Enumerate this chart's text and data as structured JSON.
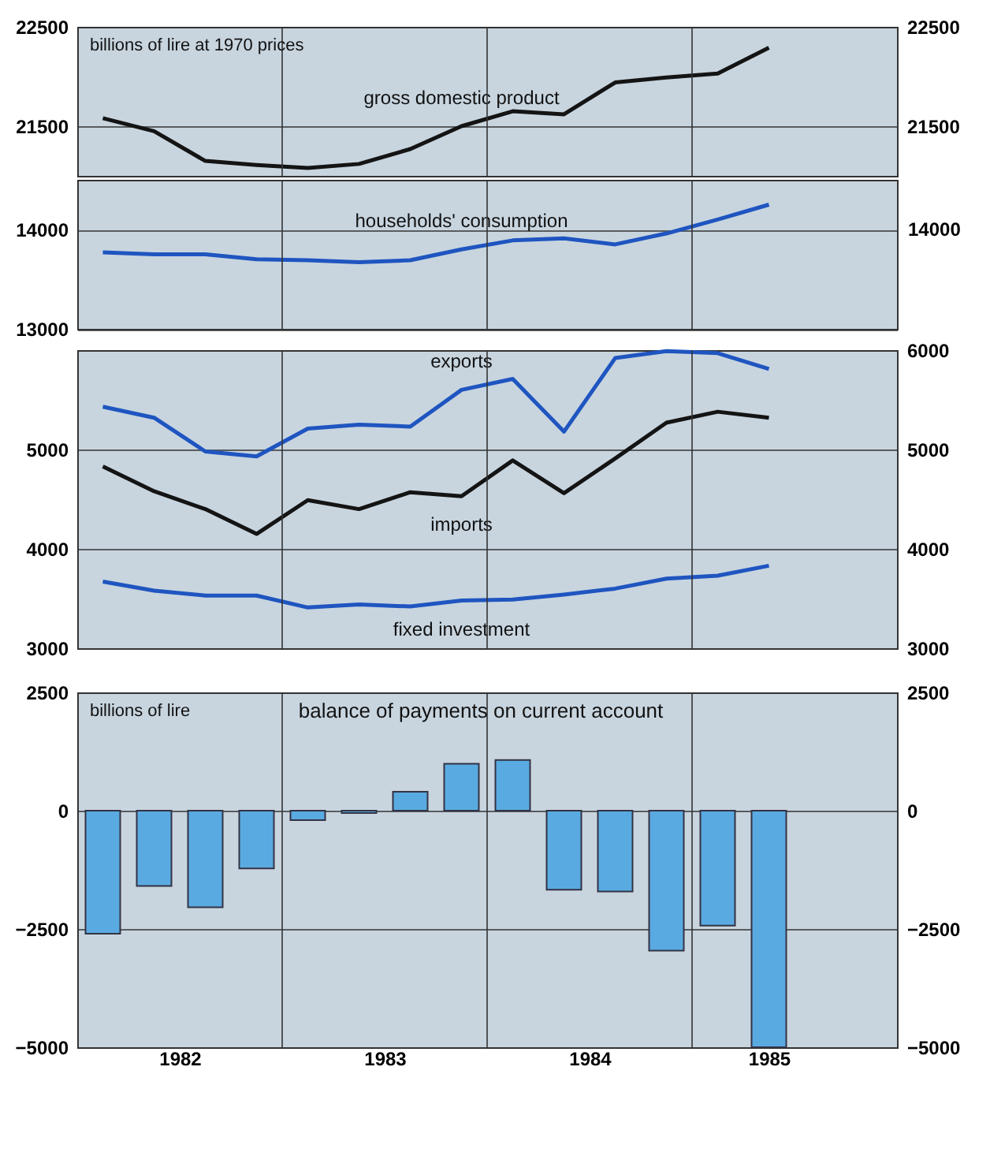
{
  "chart_data": [
    {
      "type": "line",
      "ylabel": "billions of lire at 1970 prices",
      "x": [
        1982.125,
        1982.375,
        1982.625,
        1982.875,
        1983.125,
        1983.375,
        1983.625,
        1983.875,
        1984.125,
        1984.375,
        1984.625,
        1984.875,
        1985.125,
        1985.375
      ],
      "series": [
        {
          "name": "gross domestic product",
          "color": "#141414",
          "values": [
            21580,
            21450,
            21150,
            21110,
            21080,
            21120,
            21270,
            21500,
            21650,
            21620,
            21940,
            21990,
            22030,
            22290
          ]
        }
      ],
      "xlim": [
        1982,
        1986
      ],
      "xticks": [
        {
          "value": 1983,
          "label": null
        },
        {
          "value": 1984,
          "label": null
        },
        {
          "value": 1985,
          "label": null
        }
      ],
      "ylim": [
        21000,
        22500
      ],
      "yticks": [
        21500,
        22500
      ],
      "y2lim": [
        21000,
        22500
      ],
      "y2ticks": [
        21500,
        22500
      ],
      "tick_labels": "y",
      "grid": true
    },
    {
      "type": "line",
      "x": [
        1982.125,
        1982.375,
        1982.625,
        1982.875,
        1983.125,
        1983.375,
        1983.625,
        1983.875,
        1984.125,
        1984.375,
        1984.625,
        1984.875,
        1985.125,
        1985.375
      ],
      "series": [
        {
          "name": "households' consumption",
          "color": "#1f55c0",
          "values": [
            13770,
            13750,
            13750,
            13700,
            13690,
            13670,
            13690,
            13800,
            13890,
            13910,
            13850,
            13960,
            14100,
            14250
          ]
        }
      ],
      "annotations": [
        "14000"
      ],
      "xlim": [
        1982,
        1986
      ],
      "xticks": [
        {
          "value": 1983,
          "label": null
        },
        {
          "value": 1984,
          "label": null
        },
        {
          "value": 1985,
          "label": null
        }
      ],
      "ylim": [
        13000,
        14500
      ],
      "yticks": [
        13000,
        14000
      ],
      "tick_labels": "y",
      "grid": true
    },
    {
      "type": "line",
      "x": [
        1982.125,
        1982.375,
        1982.625,
        1982.875,
        1983.125,
        1983.375,
        1983.625,
        1983.875,
        1984.125,
        1984.375,
        1984.625,
        1984.875,
        1985.125,
        1985.375
      ],
      "series": [
        {
          "name": "exports",
          "color": "#1f55c0",
          "values": [
            5430,
            5320,
            4980,
            4930,
            5210,
            5250,
            5230,
            5600,
            5710,
            5180,
            5920,
            5990,
            5970,
            5810
          ]
        },
        {
          "name": "imports",
          "color": "#141414",
          "values": [
            4830,
            4580,
            4400,
            4150,
            4490,
            4400,
            4570,
            4530,
            4890,
            4560,
            4910,
            5270,
            5380,
            5320
          ]
        },
        {
          "name": "fixed investment",
          "color": "#1f55c0",
          "values": [
            3670,
            3580,
            3530,
            3530,
            3410,
            3440,
            3420,
            3480,
            3490,
            3540,
            3600,
            3700,
            3730,
            3830
          ]
        }
      ],
      "xlim": [
        1982,
        1986
      ],
      "xticks": [
        {
          "value": 1983,
          "label": null
        },
        {
          "value": 1984,
          "label": null
        },
        {
          "value": 1985,
          "label": null
        }
      ],
      "ylim": [
        3000,
        6000
      ],
      "yticks": [
        3000,
        4000,
        5000
      ],
      "y2lim": [
        3000,
        6000
      ],
      "y2ticks": [
        3000,
        4000,
        5000,
        6000
      ],
      "tick_labels": "y",
      "grid": true
    },
    {
      "type": "bar",
      "title": "balance of payments on current account",
      "ylabel": "billions of lire",
      "x": [
        1982.125,
        1982.375,
        1982.625,
        1982.875,
        1983.125,
        1983.375,
        1983.625,
        1983.875,
        1984.125,
        1984.375,
        1984.625,
        1984.875,
        1985.125,
        1985.375
      ],
      "values": [
        -2600,
        -1590,
        -2040,
        -1220,
        -200,
        -50,
        400,
        990,
        1070,
        -1670,
        -1710,
        -2960,
        -2430,
        -5000
      ],
      "color": "#5aaae2",
      "xlim": [
        1982,
        1986
      ],
      "xticks": [
        {
          "value": 1982.5,
          "label": "1982"
        },
        {
          "value": 1983,
          "label": null
        },
        {
          "value": 1983.5,
          "label": "1983"
        },
        {
          "value": 1984,
          "label": null
        },
        {
          "value": 1984.5,
          "label": "1984"
        },
        {
          "value": 1985,
          "label": null
        },
        {
          "value": 1985.375,
          "label": "1985"
        }
      ],
      "ylim": [
        -5000,
        2500
      ],
      "yticks": [
        -5000,
        -2500,
        0,
        2500
      ],
      "y2lim": [
        -5000,
        2500
      ],
      "y2ticks": [
        -5000,
        -2500,
        0,
        2500
      ],
      "grid": true
    }
  ]
}
